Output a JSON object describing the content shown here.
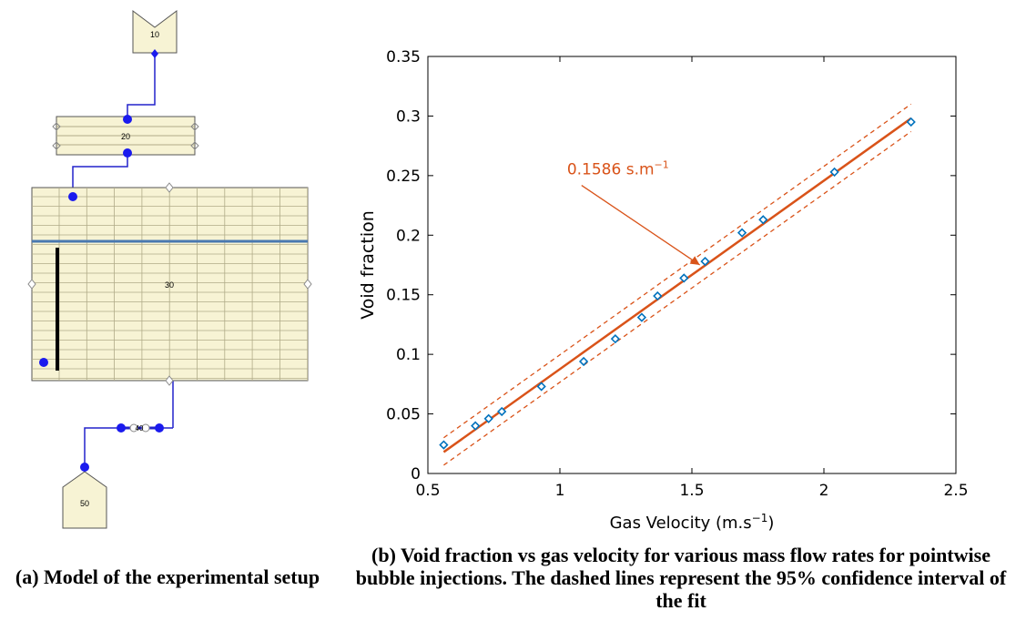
{
  "diagram": {
    "node_top_label": "10",
    "pipe_box_label": "20",
    "vessel_label": "30",
    "valve_label": "40",
    "node_bottom_label": "50",
    "colors": {
      "component_fill": "#f7f3d4",
      "grid_line": "#b0ab88",
      "pipe": "#2222cc",
      "junction": "#1a1aee",
      "water_level": "#4a78b0",
      "injector": "#000000",
      "connector": "#888888"
    }
  },
  "chart_data": {
    "type": "scatter",
    "xlabel": "Gas Velocity (m.s",
    "xlabel_sup": "−1",
    "xlabel_end": ")",
    "ylabel": "Void fraction",
    "xlim": [
      0.5,
      2.5
    ],
    "ylim": [
      0,
      0.35
    ],
    "x_ticks": [
      0.5,
      1,
      1.5,
      2,
      2.5
    ],
    "x_tick_labels": [
      "0.5",
      "1",
      "1.5",
      "2",
      "2.5"
    ],
    "y_ticks": [
      0,
      0.05,
      0.1,
      0.15,
      0.2,
      0.25,
      0.3,
      0.35
    ],
    "y_tick_labels": [
      "0",
      "0.05",
      "0.1",
      "0.15",
      "0.2",
      "0.25",
      "0.3",
      "0.35"
    ],
    "grid": false,
    "points": {
      "x": [
        0.56,
        0.68,
        0.73,
        0.78,
        0.93,
        1.09,
        1.21,
        1.31,
        1.37,
        1.47,
        1.55,
        1.69,
        1.77,
        2.04,
        2.33
      ],
      "y": [
        0.024,
        0.04,
        0.046,
        0.052,
        0.073,
        0.094,
        0.113,
        0.131,
        0.149,
        0.164,
        0.178,
        0.202,
        0.213,
        0.253,
        0.295
      ],
      "color": "#0072bd"
    },
    "fit": {
      "x": [
        0.56,
        2.33
      ],
      "y": [
        0.018,
        0.298
      ],
      "color": "#d95319"
    },
    "ci_upper": {
      "x": [
        0.56,
        2.33
      ],
      "y": [
        0.03,
        0.31
      ]
    },
    "ci_lower": {
      "x": [
        0.56,
        2.33
      ],
      "y": [
        0.007,
        0.287
      ]
    },
    "annotation": {
      "text": "0.1586 s.m",
      "sup": "−1",
      "anchor": [
        1.53,
        0.175
      ],
      "label_at": [
        1.22,
        0.251
      ]
    }
  },
  "captions": {
    "a": "(a) Model of the experimental setup",
    "b": "(b) Void fraction vs gas velocity for various mass flow rates for pointwise bubble injections. The dashed lines represent the 95% confidence interval of the fit"
  }
}
